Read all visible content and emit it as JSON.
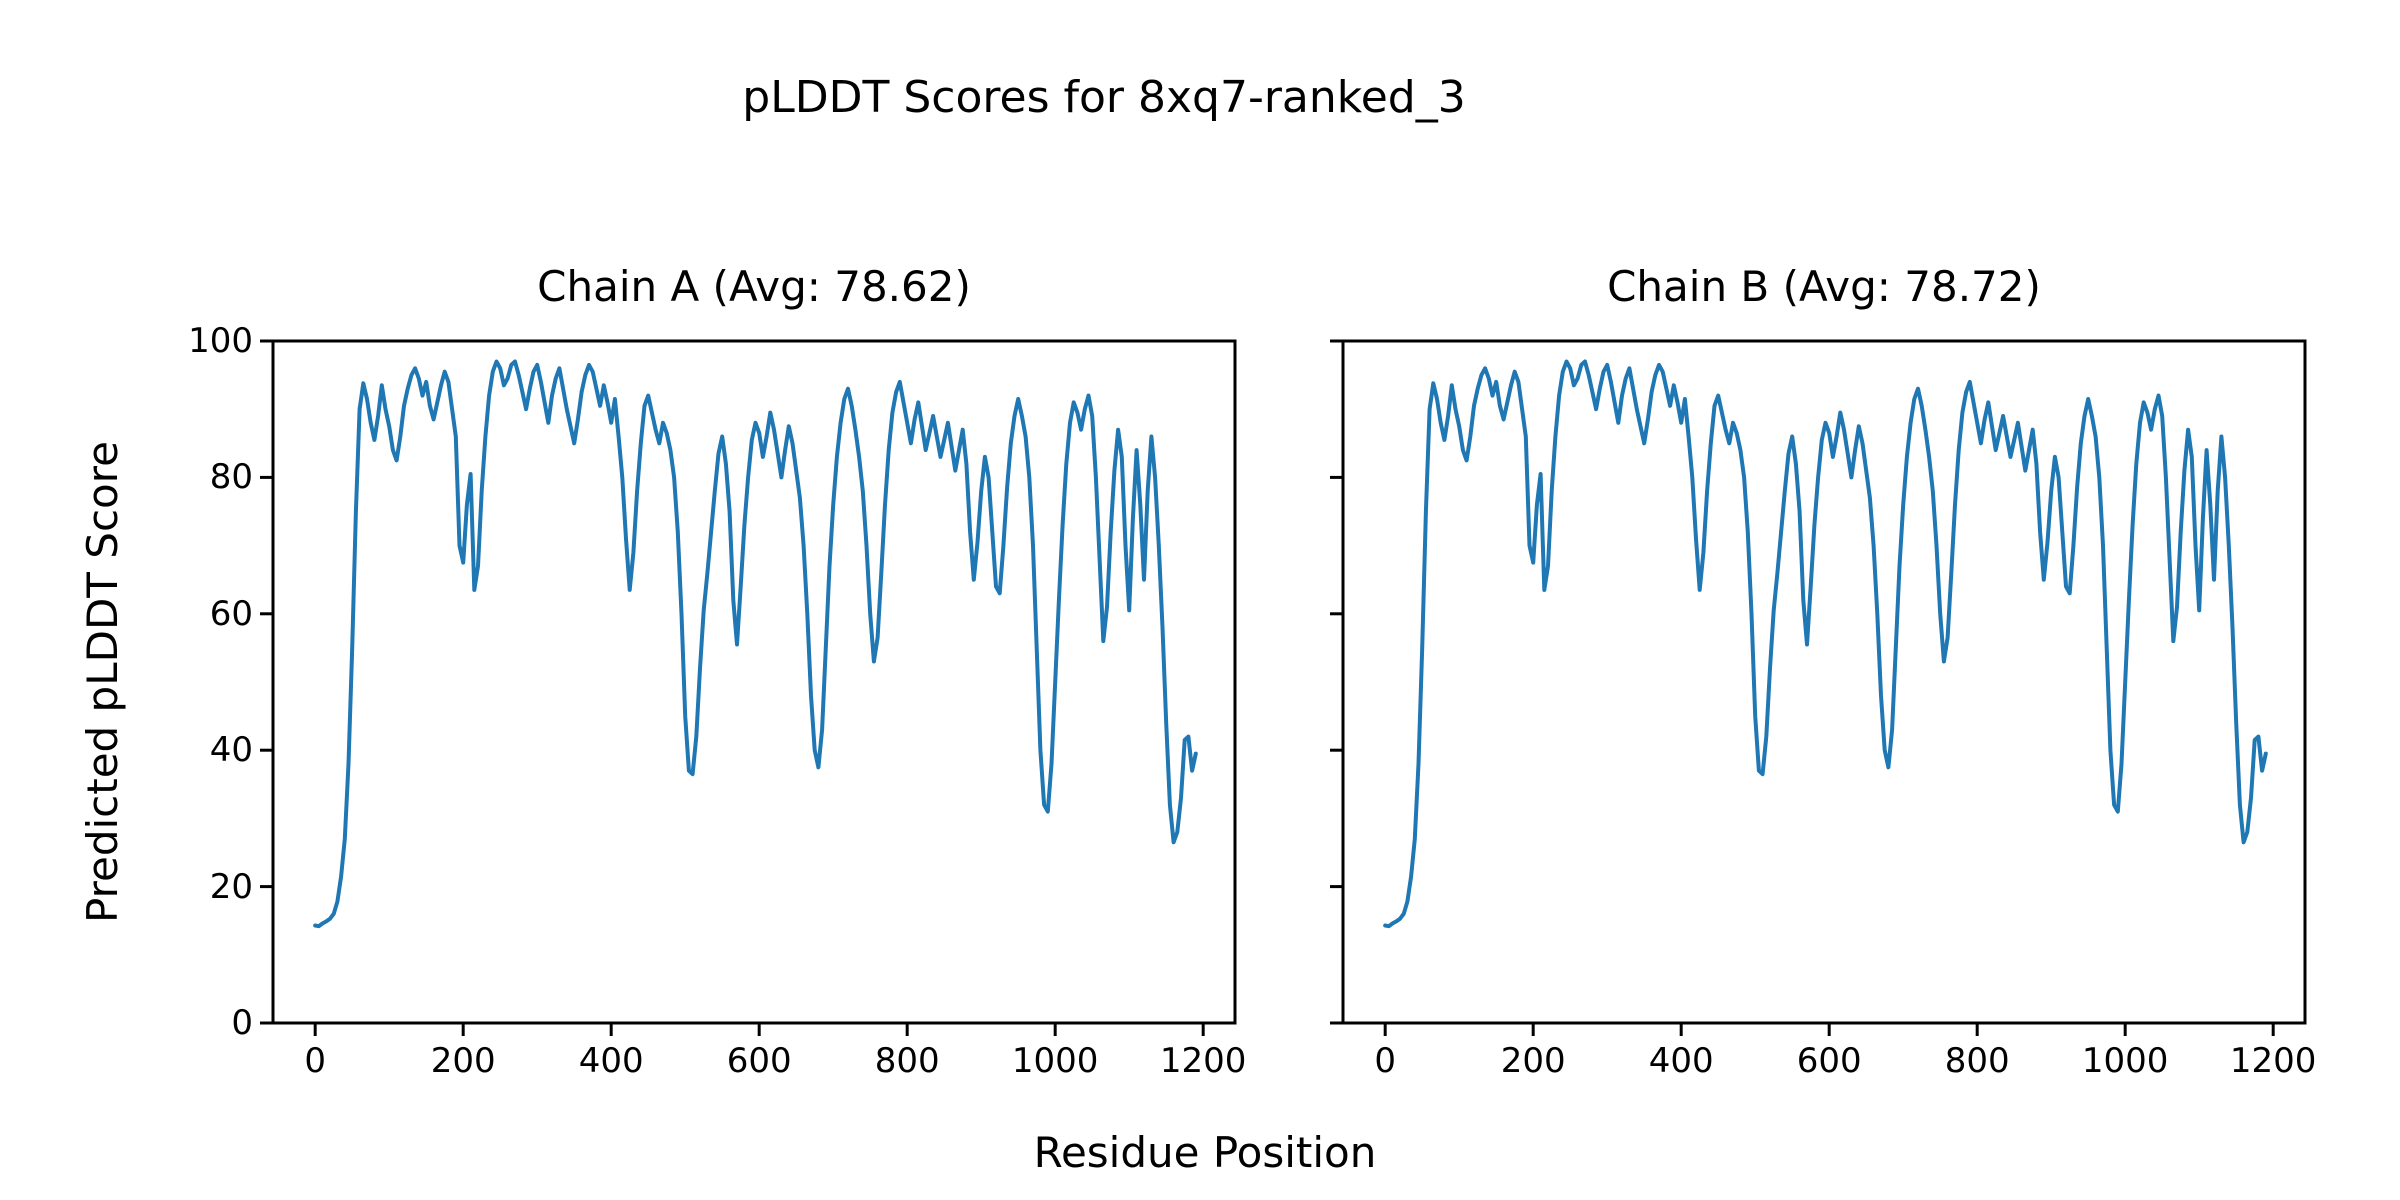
{
  "figure": {
    "suptitle": "pLDDT Scores for 8xq7-ranked_3",
    "xlabel": "Residue Position",
    "ylabel": "Predicted pLDDT Score",
    "background": "#ffffff"
  },
  "chart_data": {
    "type": "line",
    "line_color": "#1f77b4",
    "axis_color": "#000000",
    "grid": false,
    "legend_position": "none",
    "x_ticks": [
      0,
      200,
      400,
      600,
      800,
      1000,
      1200
    ],
    "y_ticks": [
      0,
      20,
      40,
      60,
      80,
      100
    ],
    "xlim": [
      -57,
      1243
    ],
    "ylim": [
      0,
      100
    ],
    "x_start": 0,
    "x_step": 5,
    "subplots": [
      {
        "chain": "A",
        "title": "Chain A (Avg: 78.62)",
        "avg": 78.62,
        "values": [
          14.3,
          14.2,
          14.6,
          14.9,
          15.3,
          16.0,
          17.8,
          21.5,
          27.0,
          38.0,
          55.0,
          75.0,
          90.0,
          93.8,
          91.5,
          88.0,
          85.5,
          89.0,
          93.5,
          90.0,
          87.5,
          84.0,
          82.5,
          86.0,
          90.5,
          93.0,
          95.0,
          96.0,
          94.5,
          92.0,
          94.0,
          90.5,
          88.5,
          91.0,
          93.5,
          95.5,
          94.0,
          90.0,
          86.0,
          70.0,
          67.5,
          76.0,
          80.5,
          63.5,
          67.0,
          78.0,
          86.0,
          92.0,
          95.5,
          97.0,
          96.0,
          93.5,
          94.5,
          96.5,
          97.0,
          95.0,
          92.5,
          90.0,
          93.0,
          95.5,
          96.5,
          94.0,
          91.0,
          88.0,
          92.0,
          94.5,
          96.0,
          93.0,
          90.0,
          87.5,
          85.0,
          88.5,
          92.5,
          95.0,
          96.5,
          95.5,
          93.0,
          90.5,
          93.5,
          91.0,
          88.0,
          91.5,
          86.0,
          80.0,
          71.0,
          63.5,
          69.0,
          78.0,
          85.0,
          90.5,
          92.0,
          89.5,
          87.0,
          85.0,
          88.0,
          86.5,
          84.0,
          80.0,
          72.0,
          60.0,
          45.0,
          37.0,
          36.5,
          42.0,
          52.0,
          60.5,
          66.0,
          72.0,
          78.0,
          83.5,
          86.0,
          82.0,
          75.0,
          62.0,
          55.5,
          64.0,
          73.0,
          80.0,
          85.5,
          88.0,
          86.5,
          83.0,
          86.0,
          89.5,
          87.0,
          83.5,
          80.0,
          84.0,
          87.5,
          85.0,
          81.0,
          77.0,
          70.0,
          60.0,
          48.0,
          40.0,
          37.5,
          43.0,
          55.0,
          67.0,
          76.0,
          83.0,
          88.0,
          91.5,
          93.0,
          90.5,
          87.0,
          83.0,
          78.0,
          70.0,
          60.0,
          53.0,
          56.5,
          66.0,
          76.0,
          84.0,
          89.5,
          92.5,
          94.0,
          91.0,
          88.0,
          85.0,
          88.5,
          91.0,
          87.5,
          84.0,
          86.5,
          89.0,
          86.0,
          83.0,
          85.5,
          88.0,
          84.5,
          81.0,
          84.0,
          87.0,
          82.0,
          72.0,
          65.0,
          70.5,
          78.0,
          83.0,
          80.0,
          72.0,
          64.0,
          63.0,
          70.0,
          78.5,
          85.0,
          89.0,
          91.5,
          89.0,
          86.0,
          80.0,
          70.0,
          55.0,
          40.0,
          32.0,
          31.0,
          38.0,
          50.0,
          62.0,
          73.0,
          82.0,
          88.0,
          91.0,
          89.5,
          87.0,
          90.0,
          92.0,
          89.0,
          80.0,
          68.0,
          56.0,
          61.0,
          72.0,
          81.0,
          87.0,
          83.0,
          70.0,
          60.5,
          74.0,
          84.0,
          76.0,
          65.0,
          78.0,
          86.0,
          80.0,
          70.0,
          58.0,
          44.0,
          32.0,
          26.5,
          28.0,
          33.0,
          41.5,
          42.0,
          37.0,
          39.5
        ]
      },
      {
        "chain": "B",
        "title": "Chain B (Avg: 78.72)",
        "avg": 78.72,
        "values": [
          14.3,
          14.2,
          14.6,
          14.9,
          15.3,
          16.0,
          17.8,
          21.5,
          27.0,
          38.0,
          55.0,
          75.0,
          90.0,
          93.8,
          91.5,
          88.0,
          85.5,
          89.0,
          93.5,
          90.0,
          87.5,
          84.0,
          82.5,
          86.0,
          90.5,
          93.0,
          95.0,
          96.0,
          94.5,
          92.0,
          94.0,
          90.5,
          88.5,
          91.0,
          93.5,
          95.5,
          94.0,
          90.0,
          86.0,
          70.0,
          67.5,
          76.0,
          80.5,
          63.5,
          67.0,
          78.0,
          86.0,
          92.0,
          95.5,
          97.0,
          96.0,
          93.5,
          94.5,
          96.5,
          97.0,
          95.0,
          92.5,
          90.0,
          93.0,
          95.5,
          96.5,
          94.0,
          91.0,
          88.0,
          92.0,
          94.5,
          96.0,
          93.0,
          90.0,
          87.5,
          85.0,
          88.5,
          92.5,
          95.0,
          96.5,
          95.5,
          93.0,
          90.5,
          93.5,
          91.0,
          88.0,
          91.5,
          86.0,
          80.0,
          71.0,
          63.5,
          69.0,
          78.0,
          85.0,
          90.5,
          92.0,
          89.5,
          87.0,
          85.0,
          88.0,
          86.5,
          84.0,
          80.0,
          72.0,
          60.0,
          45.0,
          37.0,
          36.5,
          42.0,
          52.0,
          60.5,
          66.0,
          72.0,
          78.0,
          83.5,
          86.0,
          82.0,
          75.0,
          62.0,
          55.5,
          64.0,
          73.0,
          80.0,
          85.5,
          88.0,
          86.5,
          83.0,
          86.0,
          89.5,
          87.0,
          83.5,
          80.0,
          84.0,
          87.5,
          85.0,
          81.0,
          77.0,
          70.0,
          60.0,
          48.0,
          40.0,
          37.5,
          43.0,
          55.0,
          67.0,
          76.0,
          83.0,
          88.0,
          91.5,
          93.0,
          90.5,
          87.0,
          83.0,
          78.0,
          70.0,
          60.0,
          53.0,
          56.5,
          66.0,
          76.0,
          84.0,
          89.5,
          92.5,
          94.0,
          91.0,
          88.0,
          85.0,
          88.5,
          91.0,
          87.5,
          84.0,
          86.5,
          89.0,
          86.0,
          83.0,
          85.5,
          88.0,
          84.5,
          81.0,
          84.0,
          87.0,
          82.0,
          72.0,
          65.0,
          70.5,
          78.0,
          83.0,
          80.0,
          72.0,
          64.0,
          63.0,
          70.0,
          78.5,
          85.0,
          89.0,
          91.5,
          89.0,
          86.0,
          80.0,
          70.0,
          55.0,
          40.0,
          32.0,
          31.0,
          38.0,
          50.0,
          62.0,
          73.0,
          82.0,
          88.0,
          91.0,
          89.5,
          87.0,
          90.0,
          92.0,
          89.0,
          80.0,
          68.0,
          56.0,
          61.0,
          72.0,
          81.0,
          87.0,
          83.0,
          70.0,
          60.5,
          74.0,
          84.0,
          76.0,
          65.0,
          78.0,
          86.0,
          80.0,
          70.0,
          58.0,
          44.0,
          32.0,
          26.5,
          28.0,
          33.0,
          41.5,
          42.0,
          37.0,
          39.5
        ]
      }
    ]
  }
}
